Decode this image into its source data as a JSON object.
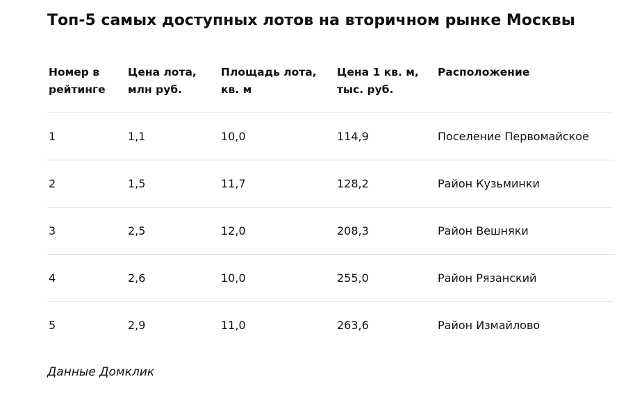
{
  "title": "Топ-5 самых доступных лотов на вторичном рынке Москвы",
  "table": {
    "header": [
      "Номер в рейтинге",
      "Цена лота, млн руб.",
      "Площадь лота, кв. м",
      "Цена 1 кв. м, тыс. руб.",
      "Расположение"
    ],
    "rows": [
      [
        "1",
        "1,1",
        "10,0",
        "114,9",
        "Поселение Первомайское"
      ],
      [
        "2",
        "1,5",
        "11,7",
        "128,2",
        "Район Кузьминки"
      ],
      [
        "3",
        "2,5",
        "12,0",
        "208,3",
        "Район Вешняки"
      ],
      [
        "4",
        "2,6",
        "10,0",
        "255,0",
        "Район Рязанский"
      ],
      [
        "5",
        "2,9",
        "11,0",
        "263,6",
        "Район Измайлово"
      ]
    ]
  },
  "source": "Данные Домклик"
}
